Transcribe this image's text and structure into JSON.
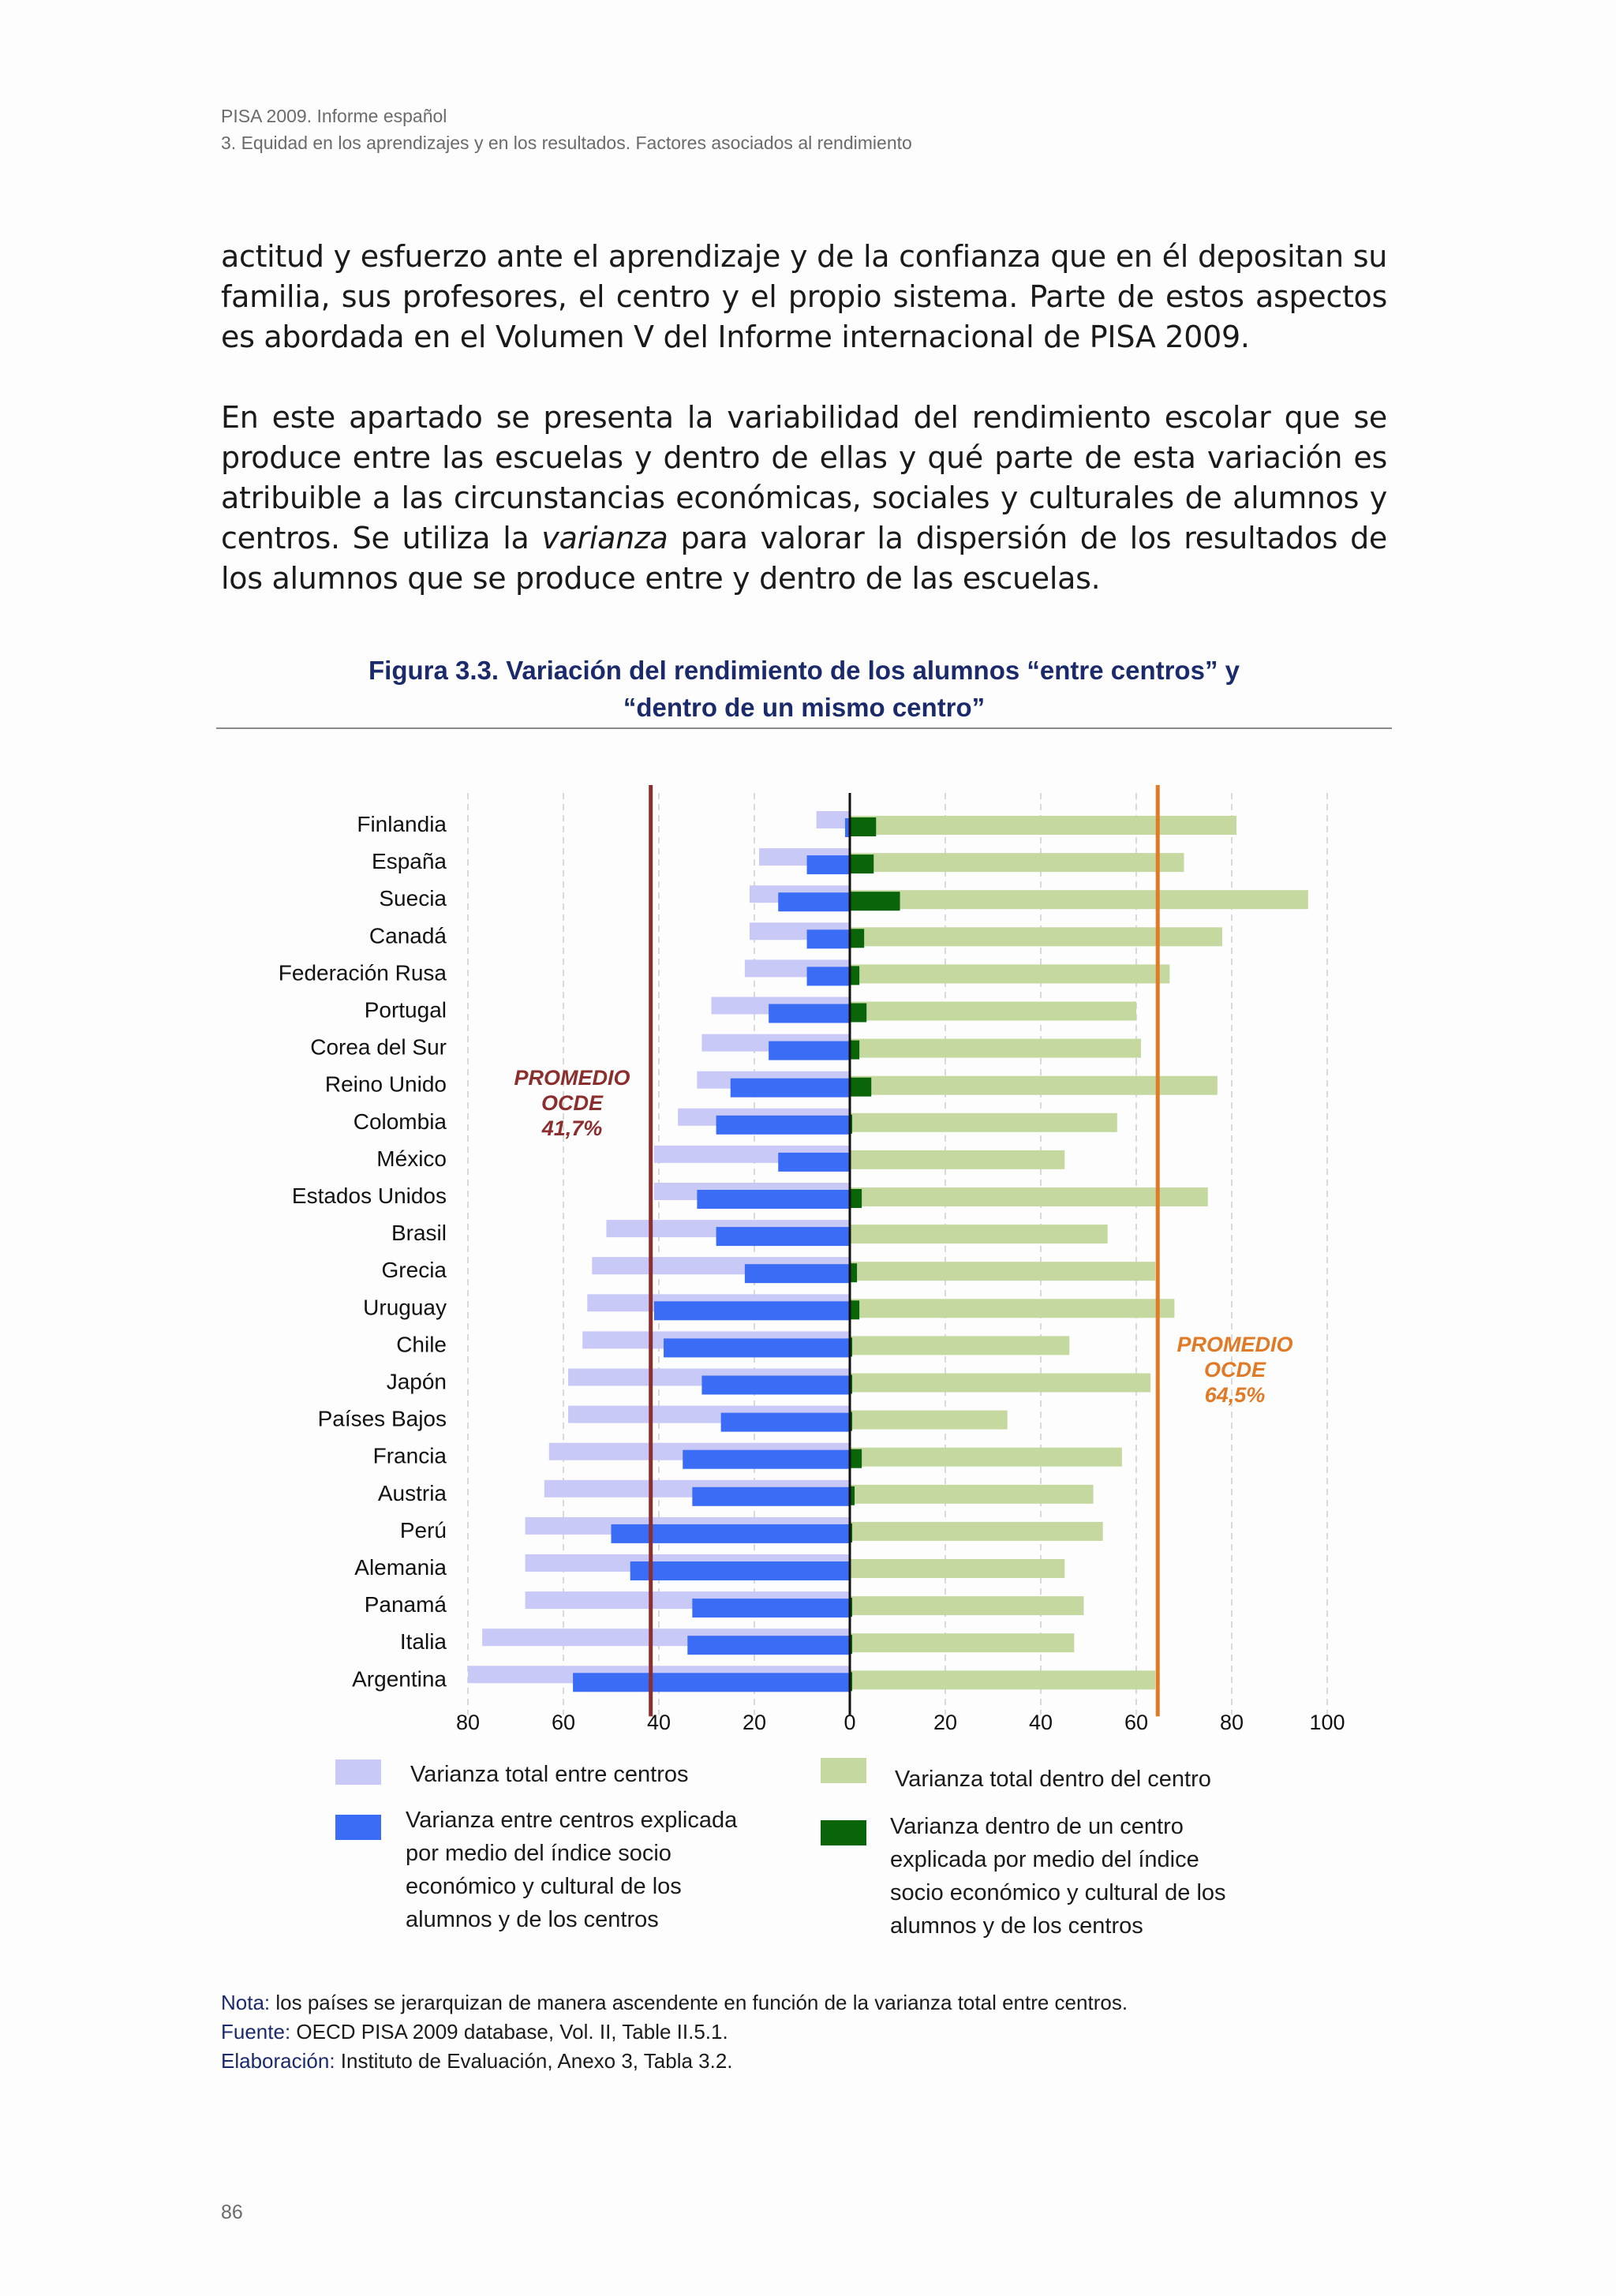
{
  "header": {
    "line1": "PISA 2009. Informe español",
    "line2": "3. Equidad en los aprendizajes y en los resultados. Factores asociados al rendimiento"
  },
  "paragraphs": {
    "p1": "actitud y esfuerzo ante el aprendizaje y de la confianza que en él depositan su familia, sus profesores, el centro y el propio sistema. Parte de estos aspectos es abordada en el Volumen V del Informe internacional de PISA 2009.",
    "p2_before": "En este apartado se presenta la variabilidad del rendimiento escolar que se produce entre las escuelas y dentro de ellas y qué parte de esta variación es atribuible a las circunstancias económicas, sociales y culturales de alumnos y centros. Se utiliza la ",
    "p2_em": "varianza",
    "p2_after": " para valorar la dispersión de los resultados de los alumnos que se produce entre y dentro de las escuelas."
  },
  "figure": {
    "title_line1": "Figura 3.3. Variación del rendimiento de los alumnos “entre centros” y",
    "title_line2": "“dentro de un mismo centro”"
  },
  "chart_data": {
    "type": "bar",
    "orientation": "horizontal",
    "categories": [
      "Finlandia",
      "España",
      "Suecia",
      "Canadá",
      "Federación Rusa",
      "Portugal",
      "Corea del Sur",
      "Reino Unido",
      "Colombia",
      "México",
      "Estados Unidos",
      "Brasil",
      "Grecia",
      "Uruguay",
      "Chile",
      "Japón",
      "Países Bajos",
      "Francia",
      "Austria",
      "Perú",
      "Alemania",
      "Panamá",
      "Italia",
      "Argentina"
    ],
    "series": [
      {
        "name": "Varianza total entre centros",
        "side": "left",
        "color": "#c9c9f7",
        "values": [
          7,
          19,
          21,
          21,
          22,
          29,
          31,
          32,
          36,
          41,
          41,
          51,
          54,
          55,
          56,
          59,
          59,
          63,
          64,
          68,
          68,
          68,
          77,
          80
        ]
      },
      {
        "name": "Varianza entre centros explicada por medio del índice socio económico y cultural de los alumnos y de los centros",
        "side": "left",
        "color": "#3b6cf5",
        "values": [
          1,
          9,
          15,
          9,
          9,
          17,
          17,
          25,
          28,
          15,
          32,
          28,
          22,
          41,
          39,
          31,
          27,
          35,
          33,
          50,
          46,
          33,
          34,
          58
        ]
      },
      {
        "name": "Varianza total dentro del  centro",
        "side": "right",
        "color": "#c4d8a0",
        "values": [
          81,
          70,
          96,
          78,
          67,
          60,
          61,
          77,
          56,
          45,
          75,
          54,
          64,
          68,
          46,
          63,
          33,
          57,
          51,
          53,
          45,
          49,
          47,
          64
        ]
      },
      {
        "name": "Varianza dentro de un centro explicada por medio del índice socio económico y cultural de los alumnos y de los centros",
        "side": "right",
        "color": "#0a640a",
        "values": [
          5.5,
          5,
          10.5,
          3,
          2,
          3.5,
          2,
          4.5,
          0.5,
          0,
          2.5,
          0,
          1.5,
          2,
          0.5,
          0.5,
          0.5,
          2.5,
          1,
          0.5,
          0,
          0.5,
          0.5,
          0.5
        ]
      }
    ],
    "x_ticks": [
      "80",
      "60",
      "40",
      "20",
      "0",
      "20",
      "40",
      "60",
      "80",
      "100"
    ],
    "xlim": [
      -80,
      100
    ],
    "grid": true,
    "reference_lines": [
      {
        "side": "left",
        "value": 41.7,
        "color": "#8b2e2e",
        "label": [
          "PROMEDIO",
          "OCDE",
          "41,7%"
        ]
      },
      {
        "side": "right",
        "value": 64.5,
        "color": "#e07a26",
        "label": [
          "PROMEDIO",
          "OCDE",
          "64,5%"
        ]
      }
    ]
  },
  "legend": {
    "left": {
      "item1": "Varianza total entre centros",
      "item2_lines": [
        "Varianza entre centros explicada",
        "por medio del índice socio",
        "económico y cultural de los",
        "alumnos y de los centros"
      ]
    },
    "right": {
      "item1": "Varianza total dentro del  centro",
      "item2_lines": [
        "Varianza dentro de un centro",
        "explicada por medio del índice",
        "socio económico y cultural de los",
        "alumnos y de los centros"
      ]
    }
  },
  "notes": {
    "nota_label": "Nota:",
    "nota_text": " los países se jerarquizan de manera ascendente en función de la varianza total entre centros.",
    "fuente_label": "Fuente:",
    "fuente_text": " OECD PISA 2009 database, Vol. II, Table II.5.1.",
    "elab_label": "Elaboración:",
    "elab_text": " Instituto de Evaluación, Anexo 3, Tabla 3.2."
  },
  "page_number": "86"
}
